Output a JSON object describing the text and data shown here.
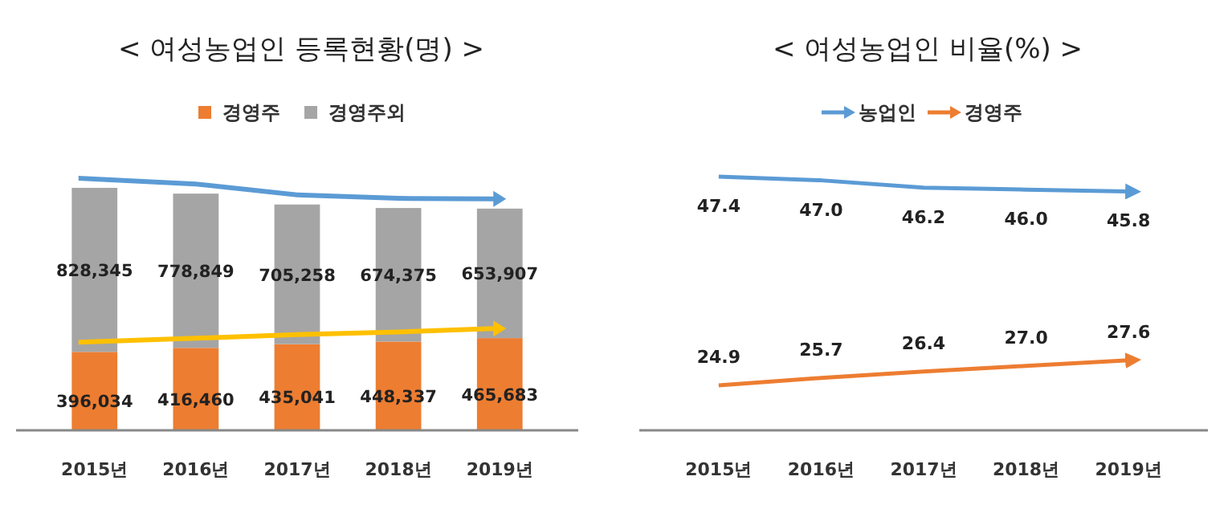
{
  "chart_data": [
    {
      "type": "bar",
      "title": "< 여성농업인 등록현황(명) >",
      "categories": [
        "2015년",
        "2016년",
        "2017년",
        "2018년",
        "2019년"
      ],
      "stacked": true,
      "legend": "top",
      "series": [
        {
          "name": "경영주",
          "color": "#ed7d31",
          "values": [
            396034,
            416460,
            435041,
            448337,
            465683
          ],
          "value_labels": [
            "396,034",
            "416,460",
            "435,041",
            "448,337",
            "465,683"
          ]
        },
        {
          "name": "경영주외",
          "color": "#a5a5a5",
          "values": [
            828345,
            778849,
            705258,
            674375,
            653907
          ],
          "value_labels": [
            "828,345",
            "778,849",
            "705,258",
            "674,375",
            "653,907"
          ]
        }
      ]
    },
    {
      "type": "line",
      "title": "< 여성농업인 비율(%) >",
      "categories": [
        "2015년",
        "2016년",
        "2017년",
        "2018년",
        "2019년"
      ],
      "legend": "top",
      "series": [
        {
          "name": "농업인",
          "color": "#5b9bd5",
          "values": [
            47.4,
            47.0,
            46.2,
            46.0,
            45.8
          ],
          "value_labels": [
            "47.4",
            "47.0",
            "46.2",
            "46.0",
            "45.8"
          ]
        },
        {
          "name": "경영주",
          "color": "#ed7d31",
          "values": [
            24.9,
            25.7,
            26.4,
            27.0,
            27.6
          ],
          "value_labels": [
            "24.9",
            "25.7",
            "26.4",
            "27.0",
            "27.6"
          ]
        }
      ]
    }
  ]
}
